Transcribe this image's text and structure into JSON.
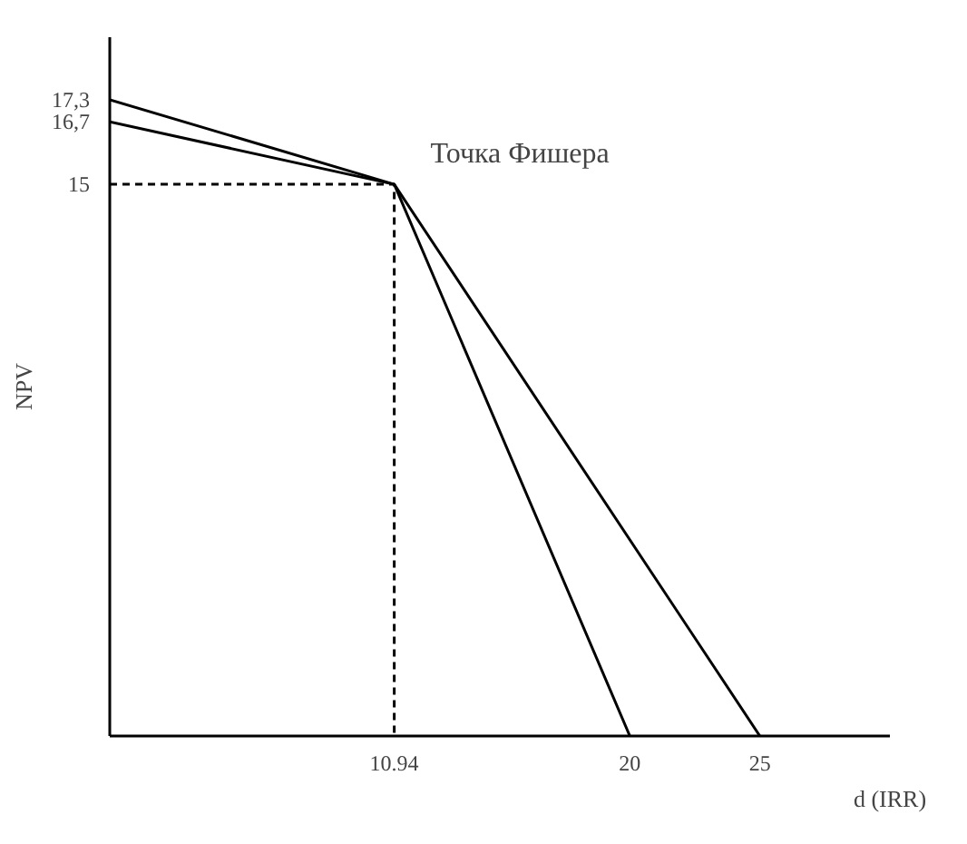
{
  "chart_data": {
    "type": "line",
    "xlabel": "d (IRR)",
    "ylabel": "NPV",
    "xlim": [
      0,
      30
    ],
    "ylim": [
      0,
      19
    ],
    "xticks": [
      10.94,
      20,
      25
    ],
    "yticks": [
      15,
      {
        "value": 16.7,
        "label": "16,7"
      },
      {
        "value": 17.3,
        "label": "17,3"
      }
    ],
    "grid": false,
    "series": [
      {
        "color": "#000000",
        "x": [
          0,
          10.94,
          20
        ],
        "values": [
          17.3,
          15,
          0
        ],
        "line_style": "solid"
      },
      {
        "color": "#000000",
        "x": [
          0,
          10.94,
          25
        ],
        "values": [
          16.7,
          15,
          0
        ],
        "line_style": "solid"
      },
      {
        "color": "#000000",
        "x": [
          0,
          10.94,
          10.94
        ],
        "values": [
          15,
          15,
          0
        ],
        "line_style": "dashed"
      }
    ],
    "annotations": [
      {
        "text": "Точка Фишера",
        "x": 10.94,
        "y": 15
      }
    ]
  }
}
